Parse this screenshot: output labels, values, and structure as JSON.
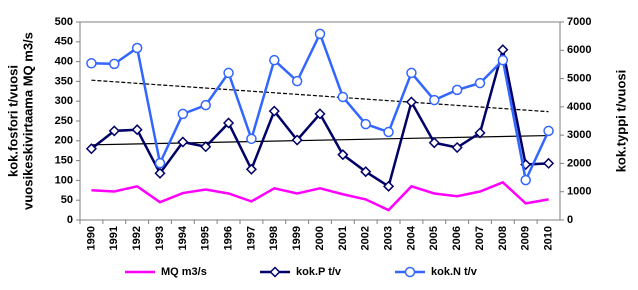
{
  "chart_data": {
    "type": "line",
    "y_label_lines": [
      "kok.fosfori t/vuosi",
      "vuosikeskivirtaama MQ m3/s"
    ],
    "y2_label": "kok.typpi t/vuosi",
    "categories": [
      "1990",
      "1991",
      "1992",
      "1993",
      "1994",
      "1995",
      "1996",
      "1997",
      "1998",
      "1999",
      "2000",
      "2001",
      "2002",
      "2003",
      "2004",
      "2005",
      "2006",
      "2007",
      "2008",
      "2009",
      "2010"
    ],
    "ylim": [
      0,
      500
    ],
    "yticks": [
      0,
      50,
      100,
      150,
      200,
      250,
      300,
      350,
      400,
      450,
      500
    ],
    "y2lim": [
      0,
      7000
    ],
    "y2ticks": [
      0,
      1000,
      2000,
      3000,
      4000,
      5000,
      6000,
      7000
    ],
    "legend": "bottom",
    "series": [
      {
        "name": "MQ m3/s",
        "color": "#ff00ff",
        "marker": "none",
        "trendline": "none",
        "values": [
          75,
          72,
          85,
          45,
          68,
          77,
          67,
          47,
          80,
          67,
          80,
          65,
          52,
          25,
          85,
          67,
          60,
          72,
          95,
          42,
          52
        ]
      },
      {
        "name": "kok.P t/v",
        "color": "#000066",
        "marker": "diamond",
        "trendline": "solid",
        "values": [
          180,
          225,
          228,
          118,
          197,
          185,
          245,
          128,
          275,
          202,
          268,
          165,
          122,
          85,
          298,
          195,
          183,
          220,
          430,
          140,
          143
        ]
      },
      {
        "name": "kok.N t/v",
        "color": "#3366ff",
        "marker": "circle",
        "trendline": "dashed",
        "axis": "y2",
        "values": [
          5540,
          5520,
          6080,
          2010,
          3750,
          4060,
          5200,
          2870,
          5650,
          4910,
          6580,
          4350,
          3390,
          3110,
          5200,
          4240,
          4600,
          4840,
          5650,
          1410,
          3150
        ]
      }
    ]
  }
}
